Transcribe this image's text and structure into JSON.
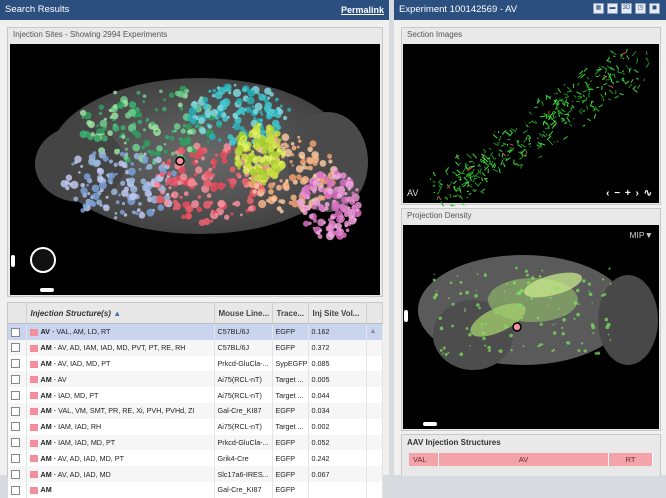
{
  "search": {
    "title": "Search Results",
    "permalink": "Permalink",
    "injection_header": "Injection Sites - Showing 2994 Experiments"
  },
  "table": {
    "headers": {
      "structure": "Injection Structure(s)",
      "sort_arrow": "▲",
      "mouse_line": "Mouse Line...",
      "tracer": "Trace...",
      "volume": "Inj Site Vol..."
    },
    "rows": [
      {
        "primary": "AV",
        "rest": " - VAL, AM, LD, RT",
        "mouse": "C57BL/6J",
        "tracer": "EGFP",
        "vol": "0.162",
        "selected": true
      },
      {
        "primary": "AM",
        "rest": " - AV, AD, IAM, IAD, MD, PVT, PT, RE, RH",
        "mouse": "C57BL/6J",
        "tracer": "EGFP",
        "vol": "0.372"
      },
      {
        "primary": "AM",
        "rest": " - AV, IAD, MD, PT",
        "mouse": "Prkcd-GluCla-...",
        "tracer": "SypEGFP",
        "vol": "0.085"
      },
      {
        "primary": "AM",
        "rest": " - AV",
        "mouse": "Ai75(RCL-nT)",
        "tracer": "Target ...",
        "vol": "0.005"
      },
      {
        "primary": "AM",
        "rest": " - IAD, MD, PT",
        "mouse": "Ai75(RCL-nT)",
        "tracer": "Target ...",
        "vol": "0.044"
      },
      {
        "primary": "AM",
        "rest": " - VAL, VM, SMT, PR, RE, Xi, PVH, PVHd, ZI",
        "mouse": "Gal-Cre_KI87",
        "tracer": "EGFP",
        "vol": "0.034"
      },
      {
        "primary": "AM",
        "rest": " - IAM, IAD, RH",
        "mouse": "Ai75(RCL-nT)",
        "tracer": "Target ...",
        "vol": "0.002"
      },
      {
        "primary": "AM",
        "rest": " - IAM, IAD, MD, PT",
        "mouse": "Prkcd-GluCla-...",
        "tracer": "EGFP",
        "vol": "0.052"
      },
      {
        "primary": "AM",
        "rest": " - AV, AD, IAD, MD, PT",
        "mouse": "Grik4-Cre",
        "tracer": "EGFP",
        "vol": "0.242"
      },
      {
        "primary": "AM",
        "rest": " - AV, AD, IAD, MD",
        "mouse": "Slc17a6-IRES...",
        "tracer": "EGFP",
        "vol": "0.067"
      },
      {
        "primary": "AM",
        "rest": "",
        "mouse": "Gal-Cre_KI87",
        "tracer": "EGFP",
        "vol": ""
      }
    ]
  },
  "experiment": {
    "title": "Experiment 100142569 - AV",
    "buttons": [
      "▦",
      "▬",
      "3D",
      "◳",
      "◼"
    ],
    "section_header": "Section Images",
    "section_label": "AV",
    "section_controls": "‹ − + › ∿",
    "projection_header": "Projection Density",
    "mip": "MIP▼",
    "aav_header": "AAV Injection Structures",
    "aav_bars": [
      "VAL",
      "AV",
      "RT"
    ]
  },
  "colors": {
    "titlebar": "#2b4f7f",
    "swatch": "#f38f9b",
    "selected_row": "#c9d4ee"
  }
}
